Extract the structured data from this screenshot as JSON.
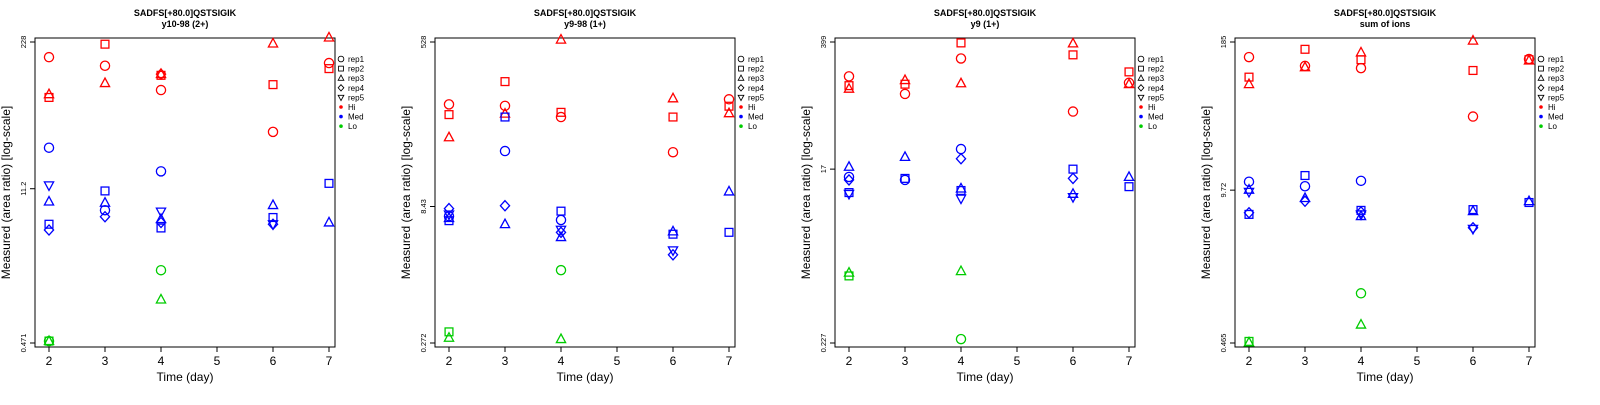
{
  "page": {
    "xlabel": "Time (day)",
    "ylabel": "Measured (area ratio) [log-scale]"
  },
  "legend": {
    "items": [
      {
        "label": "rep1",
        "shape": "circle"
      },
      {
        "label": "rep2",
        "shape": "square"
      },
      {
        "label": "rep3",
        "shape": "triangle-up"
      },
      {
        "label": "rep4",
        "shape": "diamond"
      },
      {
        "label": "rep5",
        "shape": "triangle-down"
      },
      {
        "label": "Hi",
        "shape": "dot",
        "color": "#ff0000"
      },
      {
        "label": "Med",
        "shape": "dot",
        "color": "#0000ff"
      },
      {
        "label": "Lo",
        "shape": "dot",
        "color": "#00cc00"
      }
    ]
  },
  "colors": {
    "Hi": "#ff0000",
    "Med": "#0000ff",
    "Lo": "#00cc00"
  },
  "chart_data": [
    {
      "type": "scatter",
      "title": "SADFS[+80.0]QSTSIGIK",
      "subtitle": "y10-98 (2+)",
      "xlabel": "Time (day)",
      "ylabel": "Measured (area ratio) [log-scale]",
      "yscale": "log",
      "xticks": [
        2,
        3,
        4,
        5,
        6,
        7
      ],
      "yticks": [
        "0.471",
        "11.2",
        "228"
      ],
      "ylim": [
        0.471,
        228
      ],
      "points": [
        {
          "x": 2,
          "y": 167,
          "rep": "rep1",
          "level": "Hi"
        },
        {
          "x": 2,
          "y": 73,
          "rep": "rep2",
          "level": "Hi"
        },
        {
          "x": 2,
          "y": 78,
          "rep": "rep3",
          "level": "Hi"
        },
        {
          "x": 3,
          "y": 218,
          "rep": "rep2",
          "level": "Hi"
        },
        {
          "x": 3,
          "y": 140,
          "rep": "rep1",
          "level": "Hi"
        },
        {
          "x": 3,
          "y": 98,
          "rep": "rep3",
          "level": "Hi"
        },
        {
          "x": 4,
          "y": 118,
          "rep": "rep4",
          "level": "Hi"
        },
        {
          "x": 4,
          "y": 118,
          "rep": "rep3",
          "level": "Hi"
        },
        {
          "x": 4,
          "y": 115,
          "rep": "rep2",
          "level": "Hi"
        },
        {
          "x": 4,
          "y": 85,
          "rep": "rep1",
          "level": "Hi"
        },
        {
          "x": 6,
          "y": 221,
          "rep": "rep3",
          "level": "Hi"
        },
        {
          "x": 6,
          "y": 95,
          "rep": "rep2",
          "level": "Hi"
        },
        {
          "x": 6,
          "y": 36,
          "rep": "rep1",
          "level": "Hi"
        },
        {
          "x": 7,
          "y": 250,
          "rep": "rep3",
          "level": "Hi"
        },
        {
          "x": 7,
          "y": 148,
          "rep": "rep1",
          "level": "Hi"
        },
        {
          "x": 7,
          "y": 132,
          "rep": "rep2",
          "level": "Hi"
        },
        {
          "x": 2,
          "y": 26,
          "rep": "rep1",
          "level": "Med"
        },
        {
          "x": 2,
          "y": 12,
          "rep": "rep5",
          "level": "Med"
        },
        {
          "x": 2,
          "y": 8.6,
          "rep": "rep3",
          "level": "Med"
        },
        {
          "x": 2,
          "y": 5.4,
          "rep": "rep2",
          "level": "Med"
        },
        {
          "x": 2,
          "y": 4.8,
          "rep": "rep4",
          "level": "Med"
        },
        {
          "x": 3,
          "y": 10.7,
          "rep": "rep2",
          "level": "Med"
        },
        {
          "x": 3,
          "y": 8.4,
          "rep": "rep3",
          "level": "Med"
        },
        {
          "x": 3,
          "y": 7.2,
          "rep": "rep1",
          "level": "Med"
        },
        {
          "x": 3,
          "y": 6.3,
          "rep": "rep4",
          "level": "Med"
        },
        {
          "x": 4,
          "y": 16,
          "rep": "rep1",
          "level": "Med"
        },
        {
          "x": 4,
          "y": 7.0,
          "rep": "rep5",
          "level": "Med"
        },
        {
          "x": 4,
          "y": 6.0,
          "rep": "rep3",
          "level": "Med"
        },
        {
          "x": 4,
          "y": 5.6,
          "rep": "rep4",
          "level": "Med"
        },
        {
          "x": 4,
          "y": 5.0,
          "rep": "rep2",
          "level": "Med"
        },
        {
          "x": 6,
          "y": 8.0,
          "rep": "rep3",
          "level": "Med"
        },
        {
          "x": 6,
          "y": 6.2,
          "rep": "rep2",
          "level": "Med"
        },
        {
          "x": 6,
          "y": 5.4,
          "rep": "rep5",
          "level": "Med"
        },
        {
          "x": 6,
          "y": 5.4,
          "rep": "rep4",
          "level": "Med"
        },
        {
          "x": 7,
          "y": 12.5,
          "rep": "rep2",
          "level": "Med"
        },
        {
          "x": 7,
          "y": 5.6,
          "rep": "rep3",
          "level": "Med"
        },
        {
          "x": 2,
          "y": 0.49,
          "rep": "rep2",
          "level": "Lo"
        },
        {
          "x": 2,
          "y": 0.49,
          "rep": "rep3",
          "level": "Lo"
        },
        {
          "x": 2,
          "y": 0.49,
          "rep": "rep1",
          "level": "Lo"
        },
        {
          "x": 4,
          "y": 2.1,
          "rep": "rep1",
          "level": "Lo"
        },
        {
          "x": 4,
          "y": 1.15,
          "rep": "rep3",
          "level": "Lo"
        }
      ]
    },
    {
      "type": "scatter",
      "title": "SADFS[+80.0]QSTSIGIK",
      "subtitle": "y9-98 (1+)",
      "xlabel": "Time (day)",
      "ylabel": "Measured (area ratio) [log-scale]",
      "yscale": "log",
      "xticks": [
        2,
        3,
        4,
        5,
        6,
        7
      ],
      "yticks": [
        "0.272",
        "8.43",
        "528"
      ],
      "ylim": [
        0.272,
        528
      ],
      "points": [
        {
          "x": 2,
          "y": 110,
          "rep": "rep1",
          "level": "Hi"
        },
        {
          "x": 2,
          "y": 85,
          "rep": "rep2",
          "level": "Hi"
        },
        {
          "x": 2,
          "y": 48,
          "rep": "rep3",
          "level": "Hi"
        },
        {
          "x": 3,
          "y": 195,
          "rep": "rep2",
          "level": "Hi"
        },
        {
          "x": 3,
          "y": 106,
          "rep": "rep1",
          "level": "Hi"
        },
        {
          "x": 3,
          "y": 87,
          "rep": "rep3",
          "level": "Hi"
        },
        {
          "x": 4,
          "y": 560,
          "rep": "rep3",
          "level": "Hi"
        },
        {
          "x": 4,
          "y": 90,
          "rep": "rep2",
          "level": "Hi"
        },
        {
          "x": 4,
          "y": 80,
          "rep": "rep1",
          "level": "Hi"
        },
        {
          "x": 6,
          "y": 128,
          "rep": "rep3",
          "level": "Hi"
        },
        {
          "x": 6,
          "y": 80,
          "rep": "rep2",
          "level": "Hi"
        },
        {
          "x": 6,
          "y": 33,
          "rep": "rep1",
          "level": "Hi"
        },
        {
          "x": 7,
          "y": 125,
          "rep": "rep1",
          "level": "Hi"
        },
        {
          "x": 7,
          "y": 105,
          "rep": "rep2",
          "level": "Hi"
        },
        {
          "x": 7,
          "y": 88,
          "rep": "rep3",
          "level": "Hi"
        },
        {
          "x": 2,
          "y": 8.0,
          "rep": "rep4",
          "level": "Med"
        },
        {
          "x": 2,
          "y": 6.9,
          "rep": "rep5",
          "level": "Med"
        },
        {
          "x": 2,
          "y": 6.3,
          "rep": "rep3",
          "level": "Med"
        },
        {
          "x": 2,
          "y": 5.9,
          "rep": "rep2",
          "level": "Med"
        },
        {
          "x": 2,
          "y": 6.6,
          "rep": "rep1",
          "level": "Med"
        },
        {
          "x": 3,
          "y": 80,
          "rep": "rep2",
          "level": "Med"
        },
        {
          "x": 3,
          "y": 34,
          "rep": "rep1",
          "level": "Med"
        },
        {
          "x": 3,
          "y": 8.6,
          "rep": "rep4",
          "level": "Med"
        },
        {
          "x": 3,
          "y": 5.4,
          "rep": "rep3",
          "level": "Med"
        },
        {
          "x": 4,
          "y": 7.5,
          "rep": "rep2",
          "level": "Med"
        },
        {
          "x": 4,
          "y": 6.0,
          "rep": "rep1",
          "level": "Med"
        },
        {
          "x": 4,
          "y": 4.7,
          "rep": "rep5",
          "level": "Med"
        },
        {
          "x": 4,
          "y": 4.4,
          "rep": "rep4",
          "level": "Med"
        },
        {
          "x": 4,
          "y": 3.9,
          "rep": "rep3",
          "level": "Med"
        },
        {
          "x": 6,
          "y": 4.5,
          "rep": "rep3",
          "level": "Med"
        },
        {
          "x": 6,
          "y": 4.2,
          "rep": "rep2",
          "level": "Med"
        },
        {
          "x": 6,
          "y": 2.8,
          "rep": "rep5",
          "level": "Med"
        },
        {
          "x": 6,
          "y": 2.5,
          "rep": "rep4",
          "level": "Med"
        },
        {
          "x": 7,
          "y": 12.3,
          "rep": "rep3",
          "level": "Med"
        },
        {
          "x": 7,
          "y": 4.4,
          "rep": "rep2",
          "level": "Med"
        },
        {
          "x": 2,
          "y": 0.36,
          "rep": "rep2",
          "level": "Lo"
        },
        {
          "x": 2,
          "y": 0.31,
          "rep": "rep3",
          "level": "Lo"
        },
        {
          "x": 4,
          "y": 1.7,
          "rep": "rep1",
          "level": "Lo"
        },
        {
          "x": 4,
          "y": 0.3,
          "rep": "rep3",
          "level": "Lo"
        }
      ]
    },
    {
      "type": "scatter",
      "title": "SADFS[+80.0]QSTSIGIK",
      "subtitle": "y9 (1+)",
      "xlabel": "Time (day)",
      "ylabel": "Measured (area ratio) [log-scale]",
      "yscale": "log",
      "xticks": [
        2,
        3,
        4,
        5,
        6,
        7
      ],
      "yticks": [
        "0.227",
        "17",
        "399"
      ],
      "ylim": [
        0.227,
        399
      ],
      "points": [
        {
          "x": 2,
          "y": 170,
          "rep": "rep1",
          "level": "Hi"
        },
        {
          "x": 2,
          "y": 135,
          "rep": "rep2",
          "level": "Hi"
        },
        {
          "x": 2,
          "y": 125,
          "rep": "rep3",
          "level": "Hi"
        },
        {
          "x": 3,
          "y": 140,
          "rep": "rep2",
          "level": "Hi"
        },
        {
          "x": 3,
          "y": 155,
          "rep": "rep3",
          "level": "Hi"
        },
        {
          "x": 3,
          "y": 110,
          "rep": "rep1",
          "level": "Hi"
        },
        {
          "x": 4,
          "y": 390,
          "rep": "rep2",
          "level": "Hi"
        },
        {
          "x": 4,
          "y": 265,
          "rep": "rep1",
          "level": "Hi"
        },
        {
          "x": 4,
          "y": 143,
          "rep": "rep3",
          "level": "Hi"
        },
        {
          "x": 6,
          "y": 385,
          "rep": "rep3",
          "level": "Hi"
        },
        {
          "x": 6,
          "y": 290,
          "rep": "rep2",
          "level": "Hi"
        },
        {
          "x": 6,
          "y": 71,
          "rep": "rep1",
          "level": "Hi"
        },
        {
          "x": 7,
          "y": 190,
          "rep": "rep2",
          "level": "Hi"
        },
        {
          "x": 7,
          "y": 145,
          "rep": "rep1",
          "level": "Hi"
        },
        {
          "x": 7,
          "y": 140,
          "rep": "rep3",
          "level": "Hi"
        },
        {
          "x": 2,
          "y": 18,
          "rep": "rep3",
          "level": "Med"
        },
        {
          "x": 2,
          "y": 14,
          "rep": "rep1",
          "level": "Med"
        },
        {
          "x": 2,
          "y": 13,
          "rep": "rep4",
          "level": "Med"
        },
        {
          "x": 2,
          "y": 9.5,
          "rep": "rep2",
          "level": "Med"
        },
        {
          "x": 2,
          "y": 9.2,
          "rep": "rep5",
          "level": "Med"
        },
        {
          "x": 3,
          "y": 23,
          "rep": "rep3",
          "level": "Med"
        },
        {
          "x": 3,
          "y": 13.5,
          "rep": "rep2",
          "level": "Med"
        },
        {
          "x": 3,
          "y": 13,
          "rep": "rep1",
          "level": "Med"
        },
        {
          "x": 4,
          "y": 28,
          "rep": "rep1",
          "level": "Med"
        },
        {
          "x": 4,
          "y": 22,
          "rep": "rep4",
          "level": "Med"
        },
        {
          "x": 4,
          "y": 10.5,
          "rep": "rep3",
          "level": "Med"
        },
        {
          "x": 4,
          "y": 10,
          "rep": "rep2",
          "level": "Med"
        },
        {
          "x": 4,
          "y": 8.2,
          "rep": "rep5",
          "level": "Med"
        },
        {
          "x": 6,
          "y": 17,
          "rep": "rep2",
          "level": "Med"
        },
        {
          "x": 6,
          "y": 13.5,
          "rep": "rep4",
          "level": "Med"
        },
        {
          "x": 6,
          "y": 9.2,
          "rep": "rep3",
          "level": "Med"
        },
        {
          "x": 6,
          "y": 8.5,
          "rep": "rep5",
          "level": "Med"
        },
        {
          "x": 7,
          "y": 14,
          "rep": "rep3",
          "level": "Med"
        },
        {
          "x": 7,
          "y": 11,
          "rep": "rep2",
          "level": "Med"
        },
        {
          "x": 2,
          "y": 1.3,
          "rep": "rep3",
          "level": "Lo"
        },
        {
          "x": 2,
          "y": 1.2,
          "rep": "rep2",
          "level": "Lo"
        },
        {
          "x": 4,
          "y": 1.35,
          "rep": "rep3",
          "level": "Lo"
        },
        {
          "x": 4,
          "y": 0.25,
          "rep": "rep1",
          "level": "Lo"
        }
      ]
    },
    {
      "type": "scatter",
      "title": "SADFS[+80.0]QSTSIGIK",
      "subtitle": "sum of ions",
      "xlabel": "Time (day)",
      "ylabel": "Measured (area ratio) [log-scale]",
      "yscale": "log",
      "xticks": [
        2,
        3,
        4,
        5,
        6,
        7
      ],
      "yticks": [
        "0.465",
        "9.72",
        "185"
      ],
      "ylim": [
        0.465,
        185
      ],
      "points": [
        {
          "x": 2,
          "y": 137,
          "rep": "rep1",
          "level": "Hi"
        },
        {
          "x": 2,
          "y": 92,
          "rep": "rep2",
          "level": "Hi"
        },
        {
          "x": 2,
          "y": 80,
          "rep": "rep3",
          "level": "Hi"
        },
        {
          "x": 3,
          "y": 160,
          "rep": "rep2",
          "level": "Hi"
        },
        {
          "x": 3,
          "y": 115,
          "rep": "rep1",
          "level": "Hi"
        },
        {
          "x": 3,
          "y": 112,
          "rep": "rep3",
          "level": "Hi"
        },
        {
          "x": 4,
          "y": 150,
          "rep": "rep3",
          "level": "Hi"
        },
        {
          "x": 4,
          "y": 130,
          "rep": "rep2",
          "level": "Hi"
        },
        {
          "x": 4,
          "y": 110,
          "rep": "rep1",
          "level": "Hi"
        },
        {
          "x": 6,
          "y": 190,
          "rep": "rep3",
          "level": "Hi"
        },
        {
          "x": 6,
          "y": 105,
          "rep": "rep2",
          "level": "Hi"
        },
        {
          "x": 6,
          "y": 42,
          "rep": "rep1",
          "level": "Hi"
        },
        {
          "x": 7,
          "y": 132,
          "rep": "rep1",
          "level": "Hi"
        },
        {
          "x": 7,
          "y": 130,
          "rep": "rep2",
          "level": "Hi"
        },
        {
          "x": 7,
          "y": 128,
          "rep": "rep3",
          "level": "Hi"
        },
        {
          "x": 2,
          "y": 11.5,
          "rep": "rep1",
          "level": "Med"
        },
        {
          "x": 2,
          "y": 9.8,
          "rep": "rep3",
          "level": "Med"
        },
        {
          "x": 2,
          "y": 9.4,
          "rep": "rep5",
          "level": "Med"
        },
        {
          "x": 2,
          "y": 6.0,
          "rep": "rep2",
          "level": "Med"
        },
        {
          "x": 2,
          "y": 6.2,
          "rep": "rep4",
          "level": "Med"
        },
        {
          "x": 3,
          "y": 13,
          "rep": "rep2",
          "level": "Med"
        },
        {
          "x": 3,
          "y": 10.5,
          "rep": "rep1",
          "level": "Med"
        },
        {
          "x": 3,
          "y": 8.3,
          "rep": "rep3",
          "level": "Med"
        },
        {
          "x": 3,
          "y": 7.8,
          "rep": "rep4",
          "level": "Med"
        },
        {
          "x": 4,
          "y": 11.7,
          "rep": "rep1",
          "level": "Med"
        },
        {
          "x": 4,
          "y": 6.5,
          "rep": "rep2",
          "level": "Med"
        },
        {
          "x": 4,
          "y": 6.3,
          "rep": "rep4",
          "level": "Med"
        },
        {
          "x": 4,
          "y": 6.0,
          "rep": "rep5",
          "level": "Med"
        },
        {
          "x": 4,
          "y": 5.8,
          "rep": "rep3",
          "level": "Med"
        },
        {
          "x": 6,
          "y": 6.6,
          "rep": "rep2",
          "level": "Med"
        },
        {
          "x": 6,
          "y": 6.4,
          "rep": "rep3",
          "level": "Med"
        },
        {
          "x": 6,
          "y": 4.6,
          "rep": "rep4",
          "level": "Med"
        },
        {
          "x": 6,
          "y": 4.5,
          "rep": "rep5",
          "level": "Med"
        },
        {
          "x": 7,
          "y": 7.8,
          "rep": "rep3",
          "level": "Med"
        },
        {
          "x": 7,
          "y": 7.6,
          "rep": "rep2",
          "level": "Med"
        },
        {
          "x": 2,
          "y": 0.48,
          "rep": "rep2",
          "level": "Lo"
        },
        {
          "x": 2,
          "y": 0.47,
          "rep": "rep3",
          "level": "Lo"
        },
        {
          "x": 4,
          "y": 1.25,
          "rep": "rep1",
          "level": "Lo"
        },
        {
          "x": 4,
          "y": 0.67,
          "rep": "rep3",
          "level": "Lo"
        }
      ]
    }
  ]
}
